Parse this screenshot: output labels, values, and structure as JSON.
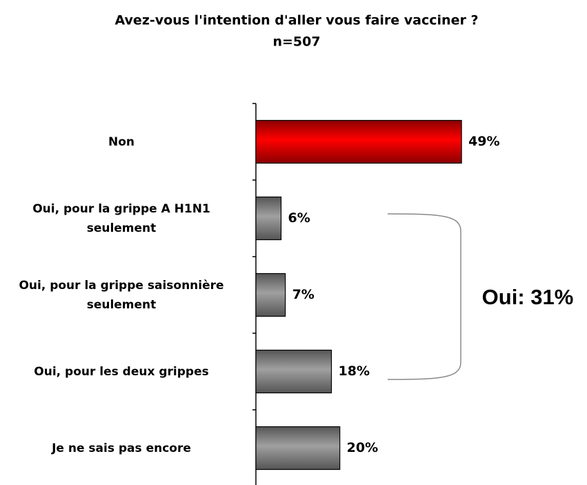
{
  "chart_data": {
    "type": "bar",
    "orientation": "horizontal",
    "title": "Avez-vous l'intention d'aller vous faire vacciner ?",
    "subtitle": "n=507",
    "categories": [
      "Non",
      "Oui, pour la grippe A H1N1 seulement",
      "Oui, pour la grippe saisonnière seulement",
      "Oui, pour les deux grippes",
      "Je ne sais pas encore"
    ],
    "values": [
      49,
      6,
      7,
      18,
      20
    ],
    "value_labels": [
      "49%",
      "6%",
      "7%",
      "18%",
      "20%"
    ],
    "colors": [
      "#ff0000",
      "#808080",
      "#808080",
      "#808080",
      "#808080"
    ],
    "xlim": [
      0,
      60
    ],
    "annotation": "Oui: 31%"
  }
}
